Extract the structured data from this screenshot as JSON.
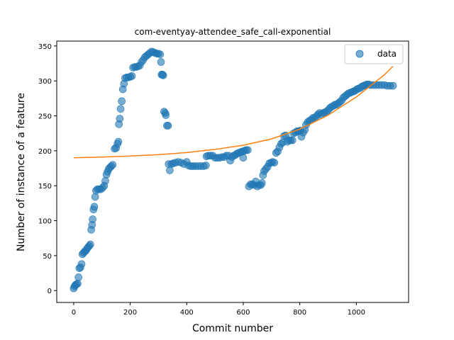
{
  "chart_data": {
    "type": "scatter",
    "title": "com-eventyay-attendee_safe_call-exponential",
    "xlabel": "Commit number",
    "ylabel": "Number of instance of a feature",
    "xlim": [
      -60,
      1185
    ],
    "ylim": [
      -17,
      357
    ],
    "xticks": [
      0,
      200,
      400,
      600,
      800,
      1000
    ],
    "yticks": [
      0,
      50,
      100,
      150,
      200,
      250,
      300,
      350
    ],
    "grid": false,
    "legend": {
      "location": "top-right",
      "entries": [
        {
          "label": "data",
          "marker": "circle",
          "color": "#1f77b4"
        }
      ]
    },
    "series": [
      {
        "name": "data",
        "kind": "scatter",
        "color": "#1f77b4",
        "points": [
          [
            0,
            3
          ],
          [
            3,
            6
          ],
          [
            6,
            8
          ],
          [
            10,
            9
          ],
          [
            14,
            10
          ],
          [
            17,
            19
          ],
          [
            20,
            32
          ],
          [
            24,
            33
          ],
          [
            28,
            38
          ],
          [
            31,
            52
          ],
          [
            35,
            54
          ],
          [
            39,
            56
          ],
          [
            43,
            57
          ],
          [
            47,
            60
          ],
          [
            51,
            62
          ],
          [
            55,
            64
          ],
          [
            59,
            66
          ],
          [
            62,
            87
          ],
          [
            65,
            94
          ],
          [
            67,
            102
          ],
          [
            70,
            116
          ],
          [
            73,
            120
          ],
          [
            76,
            134
          ],
          [
            79,
            143
          ],
          [
            84,
            145
          ],
          [
            90,
            145
          ],
          [
            96,
            145
          ],
          [
            102,
            147
          ],
          [
            108,
            150
          ],
          [
            112,
            157
          ],
          [
            116,
            166
          ],
          [
            120,
            170
          ],
          [
            124,
            174
          ],
          [
            128,
            176
          ],
          [
            133,
            178
          ],
          [
            138,
            180
          ],
          [
            145,
            203
          ],
          [
            150,
            204
          ],
          [
            155,
            210
          ],
          [
            158,
            213
          ],
          [
            160,
            238
          ],
          [
            163,
            246
          ],
          [
            166,
            260
          ],
          [
            170,
            271
          ],
          [
            174,
            288
          ],
          [
            178,
            296
          ],
          [
            182,
            304
          ],
          [
            188,
            305
          ],
          [
            194,
            305
          ],
          [
            200,
            306
          ],
          [
            206,
            307
          ],
          [
            210,
            319
          ],
          [
            216,
            320
          ],
          [
            222,
            320
          ],
          [
            228,
            321
          ],
          [
            234,
            322
          ],
          [
            240,
            327
          ],
          [
            246,
            330
          ],
          [
            252,
            334
          ],
          [
            258,
            336
          ],
          [
            264,
            338
          ],
          [
            270,
            340
          ],
          [
            276,
            342
          ],
          [
            282,
            341
          ],
          [
            288,
            340
          ],
          [
            294,
            339
          ],
          [
            300,
            339
          ],
          [
            306,
            338
          ],
          [
            309,
            327
          ],
          [
            311,
            309
          ],
          [
            314,
            309
          ],
          [
            317,
            308
          ],
          [
            320,
            256
          ],
          [
            324,
            254
          ],
          [
            326,
            251
          ],
          [
            330,
            236
          ],
          [
            334,
            236
          ],
          [
            336,
            181
          ],
          [
            340,
            172
          ],
          [
            346,
            181
          ],
          [
            352,
            182
          ],
          [
            360,
            183
          ],
          [
            370,
            184
          ],
          [
            380,
            183
          ],
          [
            390,
            181
          ],
          [
            400,
            184
          ],
          [
            406,
            179
          ],
          [
            414,
            178
          ],
          [
            422,
            178
          ],
          [
            430,
            178
          ],
          [
            440,
            178
          ],
          [
            450,
            178
          ],
          [
            460,
            178
          ],
          [
            468,
            179
          ],
          [
            470,
            192
          ],
          [
            476,
            193
          ],
          [
            484,
            193
          ],
          [
            492,
            193
          ],
          [
            500,
            190
          ],
          [
            508,
            190
          ],
          [
            516,
            190
          ],
          [
            524,
            191
          ],
          [
            532,
            191
          ],
          [
            540,
            193
          ],
          [
            548,
            193
          ],
          [
            554,
            186
          ],
          [
            560,
            191
          ],
          [
            566,
            193
          ],
          [
            572,
            194
          ],
          [
            578,
            196
          ],
          [
            584,
            197
          ],
          [
            590,
            198
          ],
          [
            596,
            199
          ],
          [
            600,
            190
          ],
          [
            604,
            200
          ],
          [
            610,
            201
          ],
          [
            616,
            201
          ],
          [
            620,
            149
          ],
          [
            626,
            152
          ],
          [
            632,
            152
          ],
          [
            638,
            151
          ],
          [
            644,
            156
          ],
          [
            650,
            149
          ],
          [
            656,
            151
          ],
          [
            662,
            151
          ],
          [
            666,
            154
          ],
          [
            670,
            165
          ],
          [
            674,
            171
          ],
          [
            680,
            174
          ],
          [
            686,
            177
          ],
          [
            692,
            182
          ],
          [
            698,
            183
          ],
          [
            704,
            184
          ],
          [
            710,
            183
          ],
          [
            716,
            197
          ],
          [
            722,
            199
          ],
          [
            728,
            205
          ],
          [
            734,
            210
          ],
          [
            740,
            212
          ],
          [
            744,
            221
          ],
          [
            750,
            222
          ],
          [
            756,
            213
          ],
          [
            762,
            215
          ],
          [
            768,
            215
          ],
          [
            774,
            215
          ],
          [
            778,
            225
          ],
          [
            784,
            226
          ],
          [
            790,
            228
          ],
          [
            796,
            228
          ],
          [
            802,
            229
          ],
          [
            806,
            220
          ],
          [
            812,
            226
          ],
          [
            818,
            230
          ],
          [
            822,
            237
          ],
          [
            828,
            241
          ],
          [
            834,
            243
          ],
          [
            840,
            244
          ],
          [
            846,
            247
          ],
          [
            852,
            247
          ],
          [
            858,
            249
          ],
          [
            864,
            252
          ],
          [
            870,
            254
          ],
          [
            876,
            252
          ],
          [
            882,
            254
          ],
          [
            888,
            255
          ],
          [
            894,
            256
          ],
          [
            900,
            258
          ],
          [
            906,
            261
          ],
          [
            912,
            263
          ],
          [
            918,
            264
          ],
          [
            924,
            266
          ],
          [
            930,
            266
          ],
          [
            936,
            268
          ],
          [
            942,
            270
          ],
          [
            948,
            272
          ],
          [
            954,
            276
          ],
          [
            960,
            278
          ],
          [
            966,
            280
          ],
          [
            972,
            282
          ],
          [
            978,
            283
          ],
          [
            984,
            284
          ],
          [
            990,
            285
          ],
          [
            996,
            286
          ],
          [
            1002,
            288
          ],
          [
            1008,
            289
          ],
          [
            1014,
            290
          ],
          [
            1020,
            292
          ],
          [
            1026,
            293
          ],
          [
            1032,
            294
          ],
          [
            1038,
            295
          ],
          [
            1044,
            295
          ],
          [
            1050,
            294
          ],
          [
            1060,
            294
          ],
          [
            1070,
            294
          ],
          [
            1080,
            294
          ],
          [
            1090,
            294
          ],
          [
            1100,
            294
          ],
          [
            1110,
            293
          ],
          [
            1120,
            293
          ],
          [
            1130,
            293
          ]
        ]
      },
      {
        "name": "",
        "kind": "line",
        "color": "#ff7f0e",
        "points": [
          [
            0,
            190
          ],
          [
            100,
            191
          ],
          [
            200,
            192.5
          ],
          [
            300,
            194.5
          ],
          [
            400,
            197.5
          ],
          [
            500,
            202
          ],
          [
            600,
            208
          ],
          [
            700,
            217
          ],
          [
            800,
            231
          ],
          [
            900,
            251
          ],
          [
            1000,
            277
          ],
          [
            1100,
            309
          ],
          [
            1130,
            321
          ]
        ]
      }
    ]
  }
}
